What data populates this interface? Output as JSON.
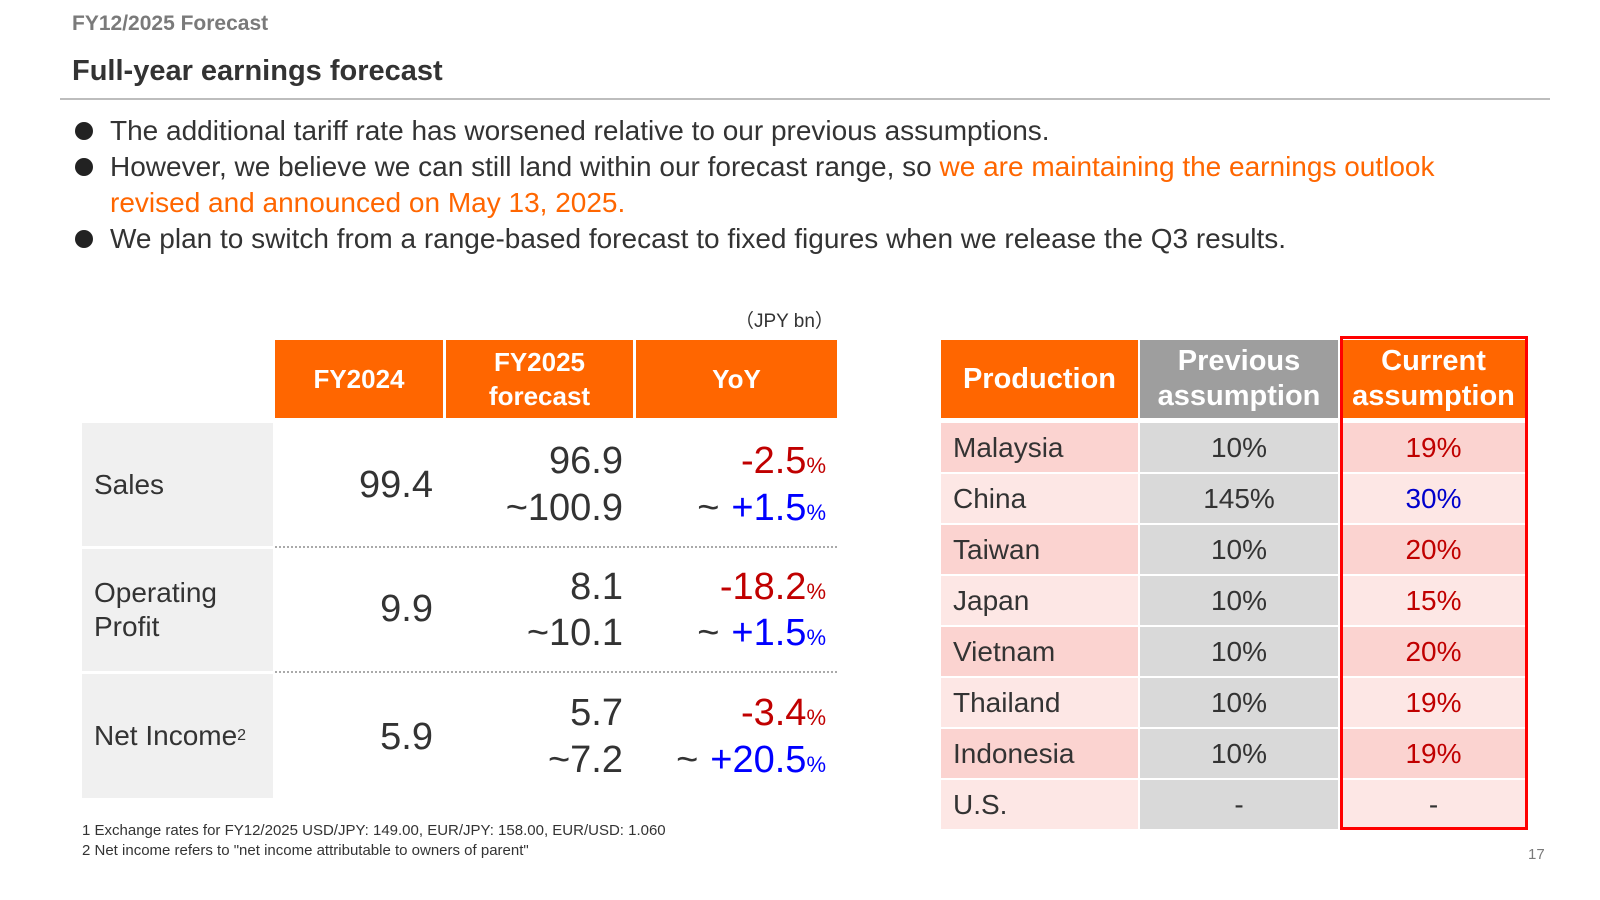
{
  "header": {
    "section_label": "FY12/2025 Forecast",
    "title": "Full-year earnings forecast"
  },
  "bullets": [
    {
      "text": "The additional tariff rate has worsened relative to our previous assumptions."
    },
    {
      "text": "However, we believe we can still land within our forecast range, so ",
      "highlight": "we are maintaining the earnings outlook revised and announced on May 13, 2025."
    },
    {
      "text": "We plan to switch from a range-based forecast to fixed figures when we release the Q3 results."
    }
  ],
  "earnings_table": {
    "unit_note": "（JPY bn）",
    "columns": [
      "FY2024",
      "FY2025 forecast",
      "YoY"
    ],
    "rows": [
      {
        "label": "Sales",
        "label_sup": "",
        "fy2024": "99.4",
        "forecast_low": "96.9",
        "forecast_high": "~100.9",
        "yoy_low": "-2.5",
        "yoy_high": "+1.5"
      },
      {
        "label": "Operating Profit",
        "label_sup": "",
        "fy2024": "9.9",
        "forecast_low": "8.1",
        "forecast_high": "~10.1",
        "yoy_low": "-18.2",
        "yoy_high": "+1.5"
      },
      {
        "label": "Net Income",
        "label_sup": "2",
        "fy2024": "5.9",
        "forecast_low": "5.7",
        "forecast_high": "~7.2",
        "yoy_low": "-3.4",
        "yoy_high": "+20.5"
      }
    ],
    "pct_symbol": "%",
    "tilde": "~"
  },
  "tariff_table": {
    "columns": [
      "Production",
      "Previous assumption",
      "Current assumption"
    ],
    "rows": [
      {
        "country": "Malaysia",
        "previous": "10%",
        "current": "19%",
        "current_color": "red"
      },
      {
        "country": "China",
        "previous": "145%",
        "current": "30%",
        "current_color": "blue"
      },
      {
        "country": "Taiwan",
        "previous": "10%",
        "current": "20%",
        "current_color": "red"
      },
      {
        "country": "Japan",
        "previous": "10%",
        "current": "15%",
        "current_color": "red"
      },
      {
        "country": "Vietnam",
        "previous": "10%",
        "current": "20%",
        "current_color": "red"
      },
      {
        "country": "Thailand",
        "previous": "10%",
        "current": "19%",
        "current_color": "red"
      },
      {
        "country": "Indonesia",
        "previous": "10%",
        "current": "19%",
        "current_color": "red"
      },
      {
        "country": "U.S.",
        "previous": "-",
        "current": "-",
        "current_color": "plain"
      }
    ]
  },
  "footnotes": [
    "1 Exchange rates for FY12/2025  USD/JPY: 149.00, EUR/JPY: 158.00, EUR/USD: 1.060",
    "2 Net income refers to \"net income attributable to owners of parent\""
  ],
  "page_number": "17",
  "colors": {
    "accent": "#ff6600",
    "negative": "#c00000",
    "positive": "#0000ff",
    "highlight_border": "#ff0000",
    "row_odd": "#fbd3d0",
    "row_even": "#fde7e5"
  }
}
